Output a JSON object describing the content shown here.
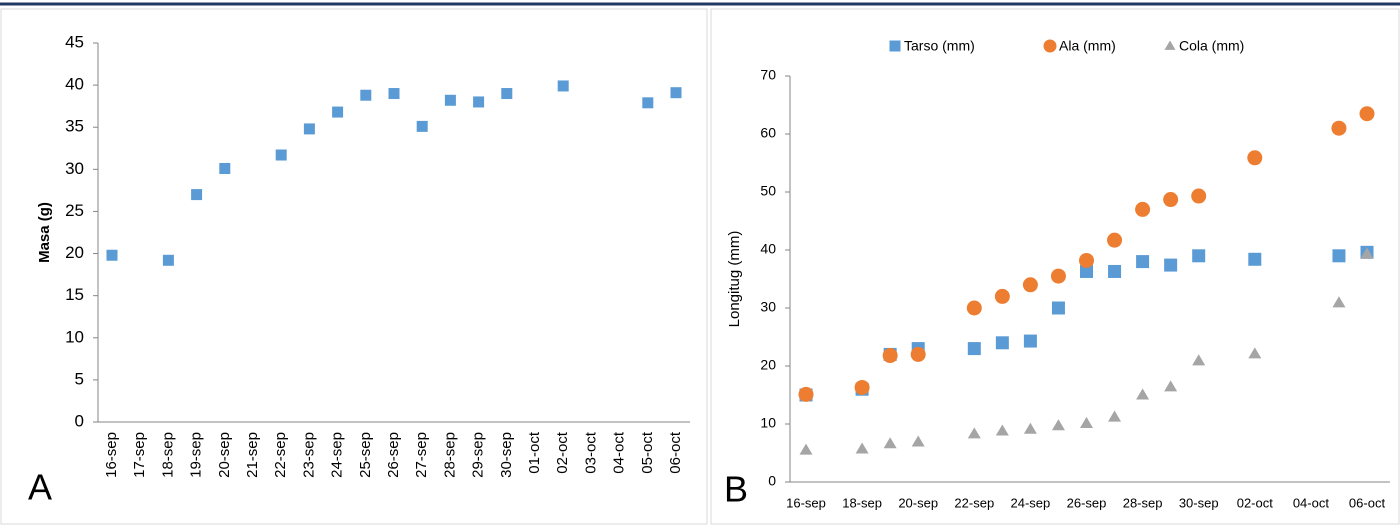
{
  "chart_data": [
    {
      "type": "scatter",
      "panel": "A",
      "ylabel": "Masa (g)",
      "categories": [
        "16-sep",
        "17-sep",
        "18-sep",
        "19-sep",
        "20-sep",
        "21-sep",
        "22-sep",
        "23-sep",
        "24-sep",
        "25-sep",
        "26-sep",
        "27-sep",
        "28-sep",
        "29-sep",
        "30-sep",
        "01-oct",
        "02-oct",
        "03-oct",
        "04-oct",
        "05-oct",
        "06-oct"
      ],
      "values": [
        19.8,
        null,
        19.2,
        27,
        30.1,
        null,
        31.7,
        34.8,
        36.8,
        38.8,
        39,
        35.1,
        38.2,
        38,
        39,
        null,
        39.9,
        null,
        null,
        37.9,
        39.1
      ],
      "color": "#5b9bd5",
      "marker": "square",
      "rotate_xlabels": true,
      "ylim": [
        0,
        45
      ],
      "yticks": [
        0,
        5,
        10,
        15,
        20,
        25,
        30,
        35,
        40,
        45
      ],
      "grid": false
    },
    {
      "type": "scatter",
      "panel": "B",
      "ylabel": "Longitug (mm)",
      "categories": [
        "16-sep",
        null,
        "18-sep",
        null,
        "20-sep",
        null,
        "22-sep",
        null,
        "24-sep",
        null,
        "26-sep",
        null,
        "28-sep",
        null,
        "30-sep",
        null,
        "02-oct",
        null,
        "04-oct",
        null,
        "06-oct"
      ],
      "series": [
        {
          "name": "Tarso (mm)",
          "color": "#5b9bd5",
          "marker": "square",
          "values": [
            15,
            null,
            16,
            22,
            23,
            null,
            23,
            24,
            24.3,
            30,
            36.3,
            36.3,
            38,
            37.4,
            39,
            null,
            38.4,
            null,
            null,
            39,
            39.6
          ]
        },
        {
          "name": "Ala (mm)",
          "color": "#ed7d31",
          "marker": "circle",
          "values": [
            15.1,
            null,
            16.3,
            21.8,
            22,
            null,
            30,
            32,
            34,
            35.5,
            38.2,
            41.7,
            47,
            48.7,
            49.3,
            null,
            55.9,
            null,
            null,
            61,
            63.5
          ]
        },
        {
          "name": "Cola (mm)",
          "color": "#a5a5a5",
          "marker": "triangle",
          "values": [
            5.5,
            null,
            5.7,
            6.6,
            6.9,
            null,
            8.3,
            8.8,
            9.1,
            9.7,
            10.1,
            11.2,
            15,
            16.4,
            20.9,
            null,
            22.1,
            null,
            null,
            30.9,
            39.3
          ]
        }
      ],
      "legend": "top",
      "rotate_xlabels": false,
      "ylim": [
        0,
        70
      ],
      "yticks": [
        0,
        10,
        20,
        30,
        40,
        50,
        60,
        70
      ],
      "grid": false
    }
  ]
}
